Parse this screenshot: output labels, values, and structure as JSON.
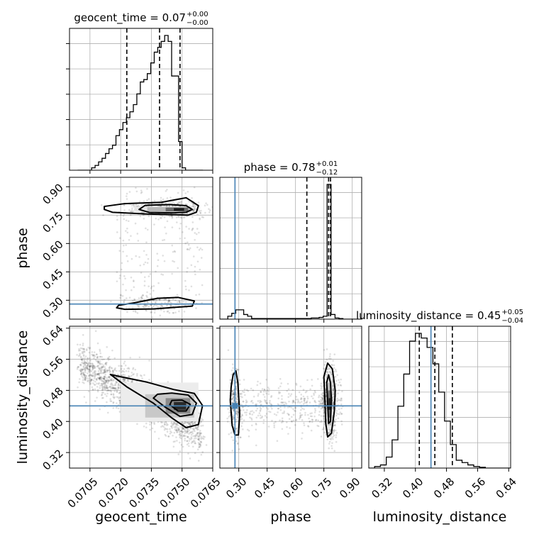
{
  "chart_data": {
    "type": "corner",
    "parameters": [
      "geocent_time",
      "phase",
      "luminosity_distance"
    ],
    "truths": {
      "geocent_time": null,
      "phase": 0.28,
      "luminosity_distance": 0.44
    },
    "ranges": {
      "geocent_time": [
        0.0695,
        0.0765
      ],
      "phase": [
        0.2,
        0.95
      ],
      "luminosity_distance": [
        0.28,
        0.645
      ]
    },
    "ticks": {
      "geocent_time": [
        "0.0705",
        "0.0720",
        "0.0735",
        "0.0750",
        "0.0765"
      ],
      "phase": [
        "0.30",
        "0.45",
        "0.60",
        "0.75",
        "0.90"
      ],
      "luminosity_distance": [
        "0.32",
        "0.40",
        "0.48",
        "0.56",
        "0.64"
      ]
    },
    "titles": [
      {
        "param": "geocent_time",
        "text": "geocent_time = 0.07",
        "plus": "+0.00",
        "minus": "−0.00"
      },
      {
        "param": "phase",
        "text": "phase = 0.78",
        "plus": "+0.01",
        "minus": "−0.12"
      },
      {
        "param": "luminosity_distance",
        "text": "luminosity_distance = 0.45",
        "plus": "+0.05",
        "minus": "−0.04"
      }
    ],
    "axis_labels": {
      "x": [
        "geocent_time",
        "phase",
        "luminosity_distance"
      ],
      "y": [
        "phase",
        "luminosity_distance"
      ]
    },
    "quantiles": {
      "geocent_time": [
        0.0723,
        0.0739,
        0.0749
      ],
      "phase": [
        0.66,
        0.775,
        0.785
      ],
      "luminosity_distance": [
        0.41,
        0.45,
        0.495
      ]
    },
    "histograms": {
      "geocent_time": {
        "edges": [
          0.0699,
          0.07007,
          0.07024,
          0.07041,
          0.07058,
          0.07075,
          0.07092,
          0.07109,
          0.07126,
          0.07143,
          0.0716,
          0.07177,
          0.07194,
          0.07211,
          0.07228,
          0.07245,
          0.07262,
          0.07279,
          0.07296,
          0.07313,
          0.0733,
          0.07347,
          0.07364,
          0.07381,
          0.07398,
          0.07415,
          0.07432,
          0.07449,
          0.07466,
          0.07483,
          0.075,
          0.07517,
          0.07534,
          0.07551,
          0.07568,
          0.07585,
          0.07602
        ],
        "counts": [
          0,
          0,
          0,
          0,
          2,
          4,
          7,
          10,
          14,
          18,
          21,
          29,
          34,
          40,
          44,
          49,
          55,
          64,
          74,
          76,
          81,
          90,
          99,
          103,
          108,
          113,
          108,
          79,
          79,
          24,
          2,
          0,
          0,
          0,
          0,
          0
        ]
      },
      "phase": {
        "edges": [
          0.2,
          0.221,
          0.242,
          0.263,
          0.284,
          0.305,
          0.326,
          0.347,
          0.368,
          0.389,
          0.41,
          0.431,
          0.452,
          0.473,
          0.494,
          0.515,
          0.536,
          0.557,
          0.578,
          0.599,
          0.62,
          0.641,
          0.662,
          0.683,
          0.704,
          0.725,
          0.746,
          0.767,
          0.788,
          0.809,
          0.83,
          0.851,
          0.872,
          0.893,
          0.914,
          0.935,
          0.95
        ],
        "counts": [
          0,
          0,
          5,
          10,
          16,
          16,
          8,
          5,
          1,
          1,
          1,
          1,
          1,
          1,
          1,
          1,
          1,
          1,
          1,
          1,
          1,
          1,
          1,
          2,
          2,
          3,
          5,
          232,
          8,
          2,
          1,
          0,
          0,
          0,
          0,
          0
        ]
      },
      "luminosity_distance": {
        "edges": [
          0.28,
          0.295,
          0.31,
          0.325,
          0.34,
          0.355,
          0.37,
          0.385,
          0.4,
          0.415,
          0.43,
          0.445,
          0.46,
          0.475,
          0.49,
          0.505,
          0.52,
          0.535,
          0.55,
          0.565,
          0.58,
          0.595,
          0.61,
          0.625,
          0.64,
          0.645
        ],
        "counts": [
          0,
          2,
          4,
          14,
          36,
          79,
          120,
          162,
          172,
          166,
          154,
          133,
          97,
          60,
          30,
          10,
          7,
          4,
          2,
          1,
          0,
          0,
          0,
          0,
          0
        ]
      }
    },
    "contours": {
      "phase_vs_geocent_time": [
        [
          [
            0.0729,
            0.78
          ],
          [
            0.0734,
            0.764
          ],
          [
            0.0746,
            0.762
          ],
          [
            0.0752,
            0.765
          ],
          [
            0.0755,
            0.78
          ],
          [
            0.0752,
            0.8
          ],
          [
            0.0744,
            0.806
          ],
          [
            0.0732,
            0.802
          ]
        ],
        [
          [
            0.0712,
            0.78
          ],
          [
            0.0716,
            0.765
          ],
          [
            0.0733,
            0.756
          ],
          [
            0.0753,
            0.75
          ],
          [
            0.0757,
            0.765
          ],
          [
            0.0758,
            0.8
          ],
          [
            0.0752,
            0.842
          ],
          [
            0.074,
            0.818
          ],
          [
            0.0722,
            0.811
          ],
          [
            0.0712,
            0.796
          ]
        ],
        [
          [
            0.0718,
            0.26
          ],
          [
            0.0722,
            0.252
          ],
          [
            0.0736,
            0.254
          ],
          [
            0.0755,
            0.269
          ],
          [
            0.0756,
            0.296
          ],
          [
            0.0748,
            0.315
          ],
          [
            0.0738,
            0.31
          ],
          [
            0.0726,
            0.285
          ],
          [
            0.0719,
            0.273
          ]
        ]
      ],
      "luminosity_distance_vs_geocent_time": [
        [
          [
            0.0744,
            0.443
          ],
          [
            0.0748,
            0.427
          ],
          [
            0.0752,
            0.427
          ],
          [
            0.0754,
            0.444
          ],
          [
            0.075,
            0.455
          ],
          [
            0.0745,
            0.454
          ]
        ],
        [
          [
            0.0736,
            0.46
          ],
          [
            0.0742,
            0.436
          ],
          [
            0.0749,
            0.413
          ],
          [
            0.0755,
            0.418
          ],
          [
            0.0757,
            0.447
          ],
          [
            0.0753,
            0.468
          ],
          [
            0.0745,
            0.473
          ],
          [
            0.0738,
            0.47
          ]
        ],
        [
          [
            0.0715,
            0.521
          ],
          [
            0.0723,
            0.489
          ],
          [
            0.0736,
            0.447
          ],
          [
            0.0745,
            0.409
          ],
          [
            0.0752,
            0.384
          ],
          [
            0.0758,
            0.392
          ],
          [
            0.076,
            0.441
          ],
          [
            0.0756,
            0.472
          ],
          [
            0.0746,
            0.482
          ],
          [
            0.0733,
            0.501
          ],
          [
            0.072,
            0.515
          ]
        ]
      ],
      "luminosity_distance_vs_phase": [
        [
          [
            0.765,
            0.5
          ],
          [
            0.77,
            0.445
          ],
          [
            0.775,
            0.395
          ],
          [
            0.785,
            0.4
          ],
          [
            0.79,
            0.455
          ],
          [
            0.785,
            0.5
          ],
          [
            0.775,
            0.52
          ]
        ],
        [
          [
            0.75,
            0.515
          ],
          [
            0.755,
            0.46
          ],
          [
            0.76,
            0.395
          ],
          [
            0.77,
            0.36
          ],
          [
            0.79,
            0.37
          ],
          [
            0.805,
            0.425
          ],
          [
            0.81,
            0.48
          ],
          [
            0.795,
            0.535
          ],
          [
            0.77,
            0.55
          ]
        ],
        [
          [
            0.255,
            0.455
          ],
          [
            0.265,
            0.39
          ],
          [
            0.28,
            0.365
          ],
          [
            0.298,
            0.365
          ],
          [
            0.305,
            0.42
          ],
          [
            0.295,
            0.5
          ],
          [
            0.285,
            0.53
          ],
          [
            0.27,
            0.52
          ],
          [
            0.26,
            0.49
          ]
        ]
      ]
    },
    "grid": true
  }
}
